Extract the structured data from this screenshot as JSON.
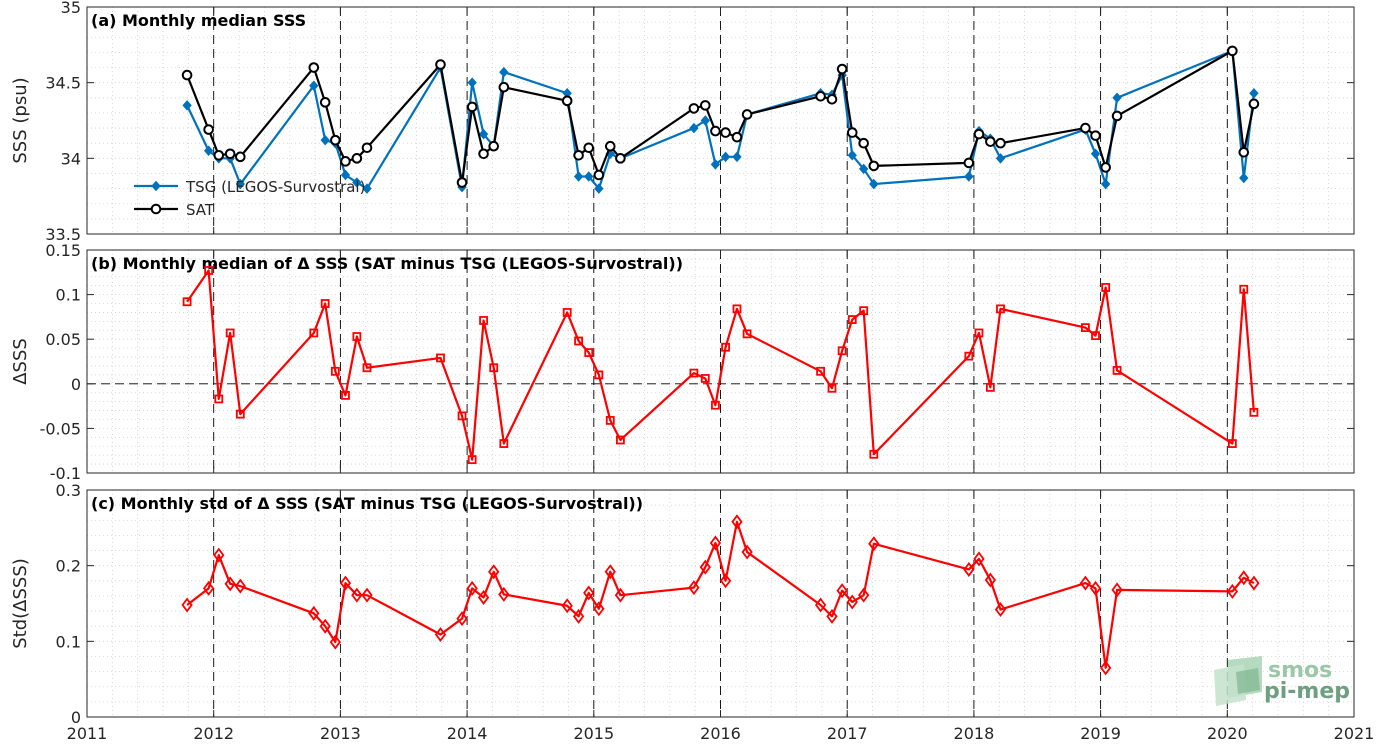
{
  "colors": {
    "tsg": "#0072BD",
    "sat": "#000000",
    "delta": "#FF0000",
    "grid": "#d0d0d0",
    "year_line": "#000000"
  },
  "logo": {
    "line1": "smos",
    "line2": "pi-mep"
  },
  "chart_data": [
    {
      "type": "line",
      "title": "(a) Monthly median SSS",
      "ylabel": "SSS (psu)",
      "ylim": [
        33.5,
        35
      ],
      "yticks": [
        33.5,
        34,
        34.5,
        35
      ],
      "ytick_labels": [
        "33.5",
        "34",
        "34.5",
        "35"
      ],
      "legend": {
        "placement": "bottom-left",
        "entries": [
          "TSG (LEGOS-Survostral)",
          "SAT"
        ]
      },
      "series": [
        {
          "name": "TSG (LEGOS-Survostral)",
          "marker": "diamond-filled",
          "points": [
            [
              2011.79,
              34.35
            ],
            [
              2011.96,
              34.05
            ],
            [
              2012.04,
              34.0
            ],
            [
              2012.13,
              34.0
            ],
            [
              2012.21,
              33.83
            ],
            [
              2012.79,
              34.48
            ],
            [
              2012.88,
              34.12
            ],
            [
              2012.96,
              34.1
            ],
            [
              2013.04,
              33.89
            ],
            [
              2013.13,
              33.84
            ],
            [
              2013.21,
              33.8
            ],
            [
              2013.79,
              34.6
            ],
            [
              2013.96,
              33.81
            ],
            [
              2014.04,
              34.5
            ],
            [
              2014.13,
              34.16
            ],
            [
              2014.21,
              34.08
            ],
            [
              2014.29,
              34.57
            ],
            [
              2014.79,
              34.43
            ],
            [
              2014.88,
              33.88
            ],
            [
              2014.96,
              33.88
            ],
            [
              2015.04,
              33.8
            ],
            [
              2015.13,
              34.03
            ],
            [
              2015.21,
              34.0
            ],
            [
              2015.79,
              34.2
            ],
            [
              2015.88,
              34.25
            ],
            [
              2015.96,
              33.96
            ],
            [
              2016.04,
              34.01
            ],
            [
              2016.13,
              34.01
            ],
            [
              2016.21,
              34.29
            ],
            [
              2016.79,
              34.43
            ],
            [
              2016.88,
              34.42
            ],
            [
              2016.96,
              34.55
            ],
            [
              2017.04,
              34.02
            ],
            [
              2017.13,
              33.93
            ],
            [
              2017.21,
              33.83
            ],
            [
              2017.96,
              33.88
            ],
            [
              2018.04,
              34.18
            ],
            [
              2018.13,
              34.13
            ],
            [
              2018.21,
              34.0
            ],
            [
              2018.88,
              34.19
            ],
            [
              2018.96,
              34.03
            ],
            [
              2019.04,
              33.83
            ],
            [
              2019.13,
              34.4
            ],
            [
              2020.04,
              34.71
            ],
            [
              2020.13,
              33.87
            ],
            [
              2020.21,
              34.43
            ]
          ]
        },
        {
          "name": "SAT",
          "marker": "circle-open",
          "points": [
            [
              2011.79,
              34.55
            ],
            [
              2011.96,
              34.19
            ],
            [
              2012.04,
              34.02
            ],
            [
              2012.13,
              34.03
            ],
            [
              2012.21,
              34.01
            ],
            [
              2012.79,
              34.6
            ],
            [
              2012.88,
              34.37
            ],
            [
              2012.96,
              34.12
            ],
            [
              2013.04,
              33.98
            ],
            [
              2013.13,
              34.0
            ],
            [
              2013.21,
              34.07
            ],
            [
              2013.79,
              34.62
            ],
            [
              2013.96,
              33.84
            ],
            [
              2014.04,
              34.34
            ],
            [
              2014.13,
              34.03
            ],
            [
              2014.21,
              34.08
            ],
            [
              2014.29,
              34.47
            ],
            [
              2014.79,
              34.38
            ],
            [
              2014.88,
              34.02
            ],
            [
              2014.96,
              34.07
            ],
            [
              2015.04,
              33.89
            ],
            [
              2015.13,
              34.08
            ],
            [
              2015.21,
              34.0
            ],
            [
              2015.79,
              34.33
            ],
            [
              2015.88,
              34.35
            ],
            [
              2015.96,
              34.18
            ],
            [
              2016.04,
              34.17
            ],
            [
              2016.13,
              34.14
            ],
            [
              2016.21,
              34.29
            ],
            [
              2016.79,
              34.41
            ],
            [
              2016.88,
              34.39
            ],
            [
              2016.96,
              34.59
            ],
            [
              2017.04,
              34.17
            ],
            [
              2017.13,
              34.1
            ],
            [
              2017.21,
              33.95
            ],
            [
              2017.96,
              33.97
            ],
            [
              2018.04,
              34.16
            ],
            [
              2018.13,
              34.11
            ],
            [
              2018.21,
              34.1
            ],
            [
              2018.88,
              34.2
            ],
            [
              2018.96,
              34.15
            ],
            [
              2019.04,
              33.94
            ],
            [
              2019.13,
              34.28
            ],
            [
              2020.04,
              34.71
            ],
            [
              2020.13,
              34.04
            ],
            [
              2020.21,
              34.36
            ]
          ]
        }
      ]
    },
    {
      "type": "line",
      "title": "(b) Monthly median of Δ SSS (SAT minus TSG (LEGOS-Survostral))",
      "ylabel": "ΔSSS",
      "ylim": [
        -0.1,
        0.15
      ],
      "yticks": [
        -0.1,
        -0.05,
        0,
        0.05,
        0.1,
        0.15
      ],
      "ytick_labels": [
        "-0.1",
        "-0.05",
        "0",
        "0.05",
        "0.1",
        "0.15"
      ],
      "zero_line": true,
      "series": [
        {
          "name": "",
          "marker": "square-open",
          "points": [
            [
              2011.79,
              0.092
            ],
            [
              2011.96,
              0.127
            ],
            [
              2012.04,
              -0.017
            ],
            [
              2012.13,
              0.057
            ],
            [
              2012.21,
              -0.034
            ],
            [
              2012.79,
              0.057
            ],
            [
              2012.88,
              0.09
            ],
            [
              2012.96,
              0.014
            ],
            [
              2013.04,
              -0.013
            ],
            [
              2013.13,
              0.053
            ],
            [
              2013.21,
              0.018
            ],
            [
              2013.79,
              0.029
            ],
            [
              2013.96,
              -0.036
            ],
            [
              2014.04,
              -0.085
            ],
            [
              2014.13,
              0.071
            ],
            [
              2014.21,
              0.018
            ],
            [
              2014.29,
              -0.067
            ],
            [
              2014.79,
              0.08
            ],
            [
              2014.88,
              0.048
            ],
            [
              2014.96,
              0.035
            ],
            [
              2015.04,
              0.01
            ],
            [
              2015.13,
              -0.041
            ],
            [
              2015.21,
              -0.063
            ],
            [
              2015.79,
              0.012
            ],
            [
              2015.88,
              0.006
            ],
            [
              2015.96,
              -0.024
            ],
            [
              2016.04,
              0.041
            ],
            [
              2016.13,
              0.084
            ],
            [
              2016.21,
              0.056
            ],
            [
              2016.79,
              0.014
            ],
            [
              2016.88,
              -0.005
            ],
            [
              2016.96,
              0.037
            ],
            [
              2017.04,
              0.072
            ],
            [
              2017.13,
              0.082
            ],
            [
              2017.21,
              -0.079
            ],
            [
              2017.96,
              0.031
            ],
            [
              2018.04,
              0.057
            ],
            [
              2018.13,
              -0.004
            ],
            [
              2018.21,
              0.084
            ],
            [
              2018.88,
              0.063
            ],
            [
              2018.96,
              0.054
            ],
            [
              2019.04,
              0.108
            ],
            [
              2019.13,
              0.015
            ],
            [
              2020.04,
              -0.067
            ],
            [
              2020.13,
              0.106
            ],
            [
              2020.21,
              -0.032
            ]
          ]
        }
      ]
    },
    {
      "type": "line",
      "title": "(c) Monthly std of Δ SSS (SAT minus TSG (LEGOS-Survostral))",
      "ylabel": "Std(ΔSSS)",
      "ylim": [
        0,
        0.3
      ],
      "yticks": [
        0,
        0.1,
        0.2,
        0.3
      ],
      "ytick_labels": [
        "0",
        "0.1",
        "0.2",
        "0.3"
      ],
      "xlim": [
        2011,
        2021
      ],
      "xticks": [
        2011,
        2012,
        2013,
        2014,
        2015,
        2016,
        2017,
        2018,
        2019,
        2020,
        2021
      ],
      "xtick_labels": [
        "2011",
        "2012",
        "2013",
        "2014",
        "2015",
        "2016",
        "2017",
        "2018",
        "2019",
        "2020",
        "2021"
      ],
      "series": [
        {
          "name": "",
          "marker": "diamond-open",
          "points": [
            [
              2011.79,
              0.148
            ],
            [
              2011.96,
              0.17
            ],
            [
              2012.04,
              0.214
            ],
            [
              2012.13,
              0.176
            ],
            [
              2012.21,
              0.173
            ],
            [
              2012.79,
              0.137
            ],
            [
              2012.88,
              0.12
            ],
            [
              2012.96,
              0.099
            ],
            [
              2013.04,
              0.177
            ],
            [
              2013.13,
              0.161
            ],
            [
              2013.21,
              0.161
            ],
            [
              2013.79,
              0.109
            ],
            [
              2013.96,
              0.13
            ],
            [
              2014.04,
              0.17
            ],
            [
              2014.13,
              0.158
            ],
            [
              2014.21,
              0.192
            ],
            [
              2014.29,
              0.162
            ],
            [
              2014.79,
              0.147
            ],
            [
              2014.88,
              0.133
            ],
            [
              2014.96,
              0.164
            ],
            [
              2015.04,
              0.143
            ],
            [
              2015.13,
              0.192
            ],
            [
              2015.21,
              0.161
            ],
            [
              2015.79,
              0.171
            ],
            [
              2015.88,
              0.198
            ],
            [
              2015.96,
              0.23
            ],
            [
              2016.04,
              0.18
            ],
            [
              2016.13,
              0.258
            ],
            [
              2016.21,
              0.218
            ],
            [
              2016.79,
              0.148
            ],
            [
              2016.88,
              0.133
            ],
            [
              2016.96,
              0.167
            ],
            [
              2017.04,
              0.152
            ],
            [
              2017.13,
              0.161
            ],
            [
              2017.21,
              0.229
            ],
            [
              2017.96,
              0.195
            ],
            [
              2018.04,
              0.209
            ],
            [
              2018.13,
              0.181
            ],
            [
              2018.21,
              0.142
            ],
            [
              2018.88,
              0.177
            ],
            [
              2018.96,
              0.17
            ],
            [
              2019.04,
              0.065
            ],
            [
              2019.13,
              0.168
            ],
            [
              2020.04,
              0.166
            ],
            [
              2020.13,
              0.184
            ],
            [
              2020.21,
              0.177
            ]
          ]
        }
      ]
    }
  ]
}
